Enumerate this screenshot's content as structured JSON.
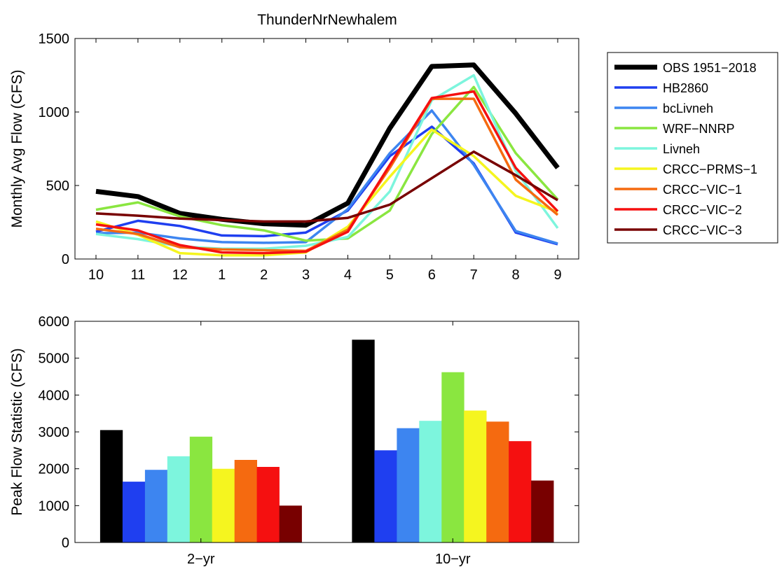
{
  "chart_data": [
    {
      "type": "line",
      "title": "ThunderNrNewhalem",
      "xlabel": "",
      "ylabel": "Monthly Avg Flow (CFS)",
      "categories": [
        "10",
        "11",
        "12",
        "1",
        "2",
        "3",
        "4",
        "5",
        "6",
        "7",
        "8",
        "9"
      ],
      "ylim": [
        0,
        1500
      ],
      "yticks": [
        0,
        500,
        1000,
        1500
      ],
      "grid": false,
      "legend_position": "outside-right",
      "series": [
        {
          "name": "OBS 1951−2018",
          "color": "#000000",
          "values": [
            460,
            425,
            310,
            270,
            240,
            230,
            380,
            890,
            1310,
            1320,
            990,
            620
          ]
        },
        {
          "name": "HB2860",
          "color": "#1f3ff0",
          "values": [
            185,
            260,
            225,
            160,
            155,
            180,
            330,
            700,
            900,
            650,
            180,
            100
          ]
        },
        {
          "name": "bcLivneh",
          "color": "#3d85f0",
          "values": [
            175,
            180,
            140,
            115,
            110,
            115,
            340,
            720,
            1010,
            640,
            190,
            105
          ]
        },
        {
          "name": "WRF−NNRP",
          "color": "#8ae640",
          "values": [
            335,
            385,
            290,
            230,
            195,
            125,
            140,
            330,
            850,
            1170,
            720,
            405
          ]
        },
        {
          "name": "Livneh",
          "color": "#7df5dd",
          "values": [
            170,
            135,
            85,
            70,
            70,
            90,
            150,
            460,
            1080,
            1250,
            600,
            210
          ]
        },
        {
          "name": "CRCC−PRMS−1",
          "color": "#f5f51f",
          "values": [
            255,
            165,
            40,
            25,
            25,
            45,
            220,
            560,
            880,
            700,
            430,
            320
          ]
        },
        {
          "name": "CRCC−VIC−1",
          "color": "#f56a10",
          "values": [
            205,
            170,
            80,
            65,
            60,
            55,
            200,
            620,
            1090,
            1090,
            540,
            300
          ]
        },
        {
          "name": "CRCC−VIC−2",
          "color": "#f51010",
          "values": [
            235,
            195,
            95,
            45,
            40,
            50,
            185,
            640,
            1095,
            1140,
            620,
            325
          ]
        },
        {
          "name": "CRCC−VIC−3",
          "color": "#780000",
          "values": [
            310,
            295,
            275,
            265,
            255,
            255,
            280,
            370,
            550,
            730,
            570,
            400
          ]
        }
      ]
    },
    {
      "type": "bar",
      "title": "",
      "xlabel": "",
      "ylabel": "Peak Flow Statistic (CFS)",
      "categories": [
        "2−yr",
        "10−yr"
      ],
      "ylim": [
        0,
        6000
      ],
      "yticks": [
        0,
        1000,
        2000,
        3000,
        4000,
        5000,
        6000
      ],
      "grid": false,
      "series": [
        {
          "name": "OBS 1951−2018",
          "color": "#000000",
          "values": [
            3050,
            5500
          ]
        },
        {
          "name": "HB2860",
          "color": "#1f3ff0",
          "values": [
            1650,
            2500
          ]
        },
        {
          "name": "bcLivneh",
          "color": "#3d85f0",
          "values": [
            1970,
            3100
          ]
        },
        {
          "name": "Livneh",
          "color": "#7df5dd",
          "values": [
            2340,
            3300
          ]
        },
        {
          "name": "WRF−NNRP",
          "color": "#8ae640",
          "values": [
            2870,
            4620
          ]
        },
        {
          "name": "CRCC−PRMS−1",
          "color": "#f5f51f",
          "values": [
            2000,
            3580
          ]
        },
        {
          "name": "CRCC−VIC−1",
          "color": "#f56a10",
          "values": [
            2240,
            3280
          ]
        },
        {
          "name": "CRCC−VIC−2",
          "color": "#f51010",
          "values": [
            2050,
            2750
          ]
        },
        {
          "name": "CRCC−VIC−3",
          "color": "#780000",
          "values": [
            1000,
            1680
          ]
        }
      ]
    }
  ]
}
